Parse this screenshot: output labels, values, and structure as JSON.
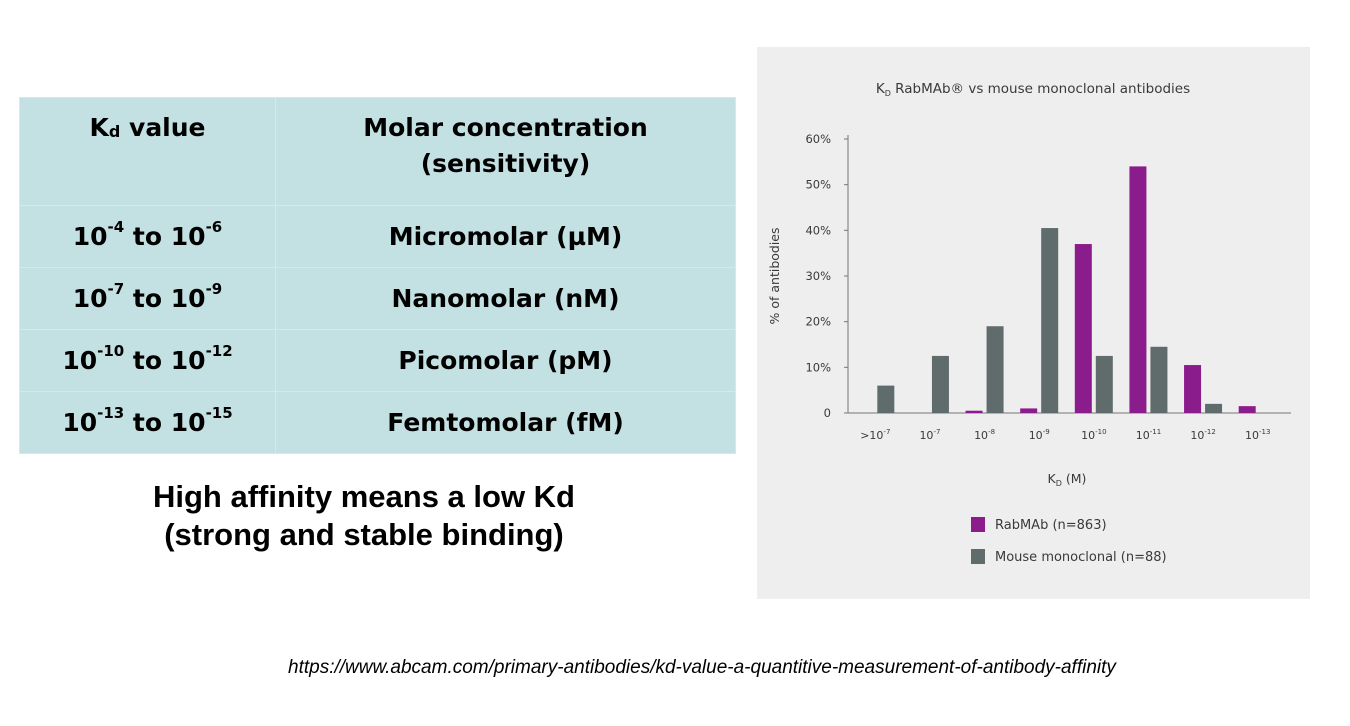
{
  "table": {
    "header": {
      "kd_prefix": "K",
      "kd_sub": "d",
      "kd_suffix": " value",
      "col2_line1": "Molar concentration",
      "col2_line2": "(sensitivity)"
    },
    "rows": [
      {
        "base1": "10",
        "exp1": "-4",
        "to": " to ",
        "base2": "10",
        "exp2": "-6",
        "label": "Micromolar (µM)"
      },
      {
        "base1": "10",
        "exp1": "-7",
        "to": " to ",
        "base2": "10",
        "exp2": "-9",
        "label": "Nanomolar (nM)"
      },
      {
        "base1": "10",
        "exp1": "-10",
        "to": " to ",
        "base2": "10",
        "exp2": "-12",
        "label": "Picomolar (pM)"
      },
      {
        "base1": "10",
        "exp1": "-13",
        "to": " to ",
        "base2": "10",
        "exp2": "-15",
        "label": "Femtomolar (fM)"
      }
    ]
  },
  "caption": {
    "line1": "High affinity means a low Kd",
    "line2": "(strong and stable binding)"
  },
  "source_url": "https://www.abcam.com/primary-antibodies/kd-value-a-quantitive-measurement-of-antibody-affinity",
  "chart_data": {
    "type": "bar",
    "title": {
      "k": "K",
      "d": "D",
      "rest": " RabMAb® vs mouse monoclonal antibodies"
    },
    "xlabel": {
      "k": "K",
      "d": "D",
      "rest": " (M)"
    },
    "ylabel": "% of antibodies",
    "categories": [
      {
        "prefix": ">10",
        "exp": "-7"
      },
      {
        "prefix": "10",
        "exp": "-7"
      },
      {
        "prefix": "10",
        "exp": "-8"
      },
      {
        "prefix": "10",
        "exp": "-9"
      },
      {
        "prefix": "10",
        "exp": "-10"
      },
      {
        "prefix": "10",
        "exp": "-11"
      },
      {
        "prefix": "10",
        "exp": "-12"
      },
      {
        "prefix": "10",
        "exp": "-13"
      }
    ],
    "yticks": [
      "0",
      "10%",
      "20%",
      "30%",
      "40%",
      "50%",
      "60%"
    ],
    "ylim": [
      0,
      60
    ],
    "grid": false,
    "legend_position": "bottom",
    "series": [
      {
        "name": "RabMAb (n=863)",
        "color": "#8b1c8c",
        "values": [
          0,
          0,
          0.5,
          1,
          37,
          54,
          10.5,
          1.5
        ]
      },
      {
        "name": "Mouse monoclonal (n=88)",
        "color": "#606c6c",
        "values": [
          6,
          12.5,
          19,
          40.5,
          12.5,
          14.5,
          2,
          0
        ]
      }
    ]
  }
}
